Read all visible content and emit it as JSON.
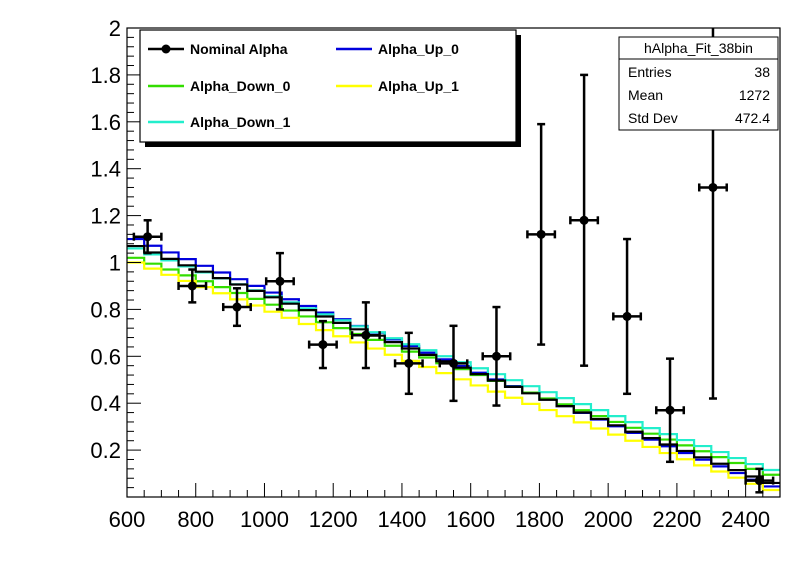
{
  "chart_data": {
    "type": "line",
    "title": "",
    "xlabel": "",
    "ylabel": "",
    "xlim": [
      600,
      2500
    ],
    "ylim": [
      0,
      2
    ],
    "x_ticks": [
      600,
      800,
      1000,
      1200,
      1400,
      1600,
      1800,
      2000,
      2200,
      2400
    ],
    "y_ticks": [
      0.2,
      0.4,
      0.6,
      0.8,
      1,
      1.2,
      1.4,
      1.6,
      1.8,
      2
    ],
    "x_tick_labels": [
      "600",
      "800",
      "1000",
      "1200",
      "1400",
      "1600",
      "1800",
      "2000",
      "2200",
      "2400"
    ],
    "y_tick_labels": [
      "0.2",
      "0.4",
      "0.6",
      "0.8",
      "1",
      "1.2",
      "1.4",
      "1.6",
      "1.8",
      "2"
    ],
    "grid": false,
    "legend_position": "top-left",
    "legend": [
      {
        "label": "Nominal Alpha",
        "color": "#000000",
        "marker": "dot"
      },
      {
        "label": "Alpha_Up_0",
        "color": "#0000dd",
        "marker": "line"
      },
      {
        "label": "Alpha_Down_0",
        "color": "#33dd00",
        "marker": "line"
      },
      {
        "label": "Alpha_Up_1",
        "color": "#ffff00",
        "marker": "line"
      },
      {
        "label": "Alpha_Down_1",
        "color": "#22eecc",
        "marker": "line"
      }
    ],
    "stats": {
      "name": "hAlpha_Fit_38bin",
      "rows": [
        {
          "label": "Entries",
          "value": "38"
        },
        {
          "label": "Mean",
          "value": "1272"
        },
        {
          "label": "Std Dev",
          "value": "472.4"
        }
      ]
    },
    "nominal_points": [
      {
        "x": 660,
        "y": 1.11,
        "xerr": 40,
        "yerr": 0.07
      },
      {
        "x": 790,
        "y": 0.9,
        "xerr": 40,
        "yerr": 0.07
      },
      {
        "x": 920,
        "y": 0.81,
        "xerr": 40,
        "yerr": 0.08
      },
      {
        "x": 1045,
        "y": 0.92,
        "xerr": 40,
        "yerr": 0.12
      },
      {
        "x": 1170,
        "y": 0.65,
        "xerr": 40,
        "yerr": 0.1
      },
      {
        "x": 1295,
        "y": 0.69,
        "xerr": 40,
        "yerr": 0.14
      },
      {
        "x": 1420,
        "y": 0.57,
        "xerr": 40,
        "yerr": 0.13
      },
      {
        "x": 1550,
        "y": 0.57,
        "xerr": 40,
        "yerr": 0.16
      },
      {
        "x": 1675,
        "y": 0.6,
        "xerr": 40,
        "yerr": 0.21
      },
      {
        "x": 1805,
        "y": 1.12,
        "xerr": 40,
        "yerr": 0.47
      },
      {
        "x": 1930,
        "y": 1.18,
        "xerr": 40,
        "yerr": 0.62
      },
      {
        "x": 2055,
        "y": 0.77,
        "xerr": 40,
        "yerr": 0.33
      },
      {
        "x": 2180,
        "y": 0.37,
        "xerr": 40,
        "yerr": 0.22
      },
      {
        "x": 2305,
        "y": 1.32,
        "xerr": 40,
        "yerr": 0.9
      },
      {
        "x": 2440,
        "y": 0.07,
        "xerr": 40,
        "yerr": 0.05
      }
    ],
    "series": [
      {
        "name": "Alpha_Up_0",
        "color": "#0000dd",
        "y_start": 1.1,
        "y_end": 0.045
      },
      {
        "name": "Alpha_Down_0",
        "color": "#33dd00",
        "y_start": 1.02,
        "y_end": 0.095
      },
      {
        "name": "Alpha_Up_1",
        "color": "#ffff00",
        "y_start": 1.0,
        "y_end": 0.03
      },
      {
        "name": "Alpha_Down_1",
        "color": "#22eecc",
        "y_start": 1.06,
        "y_end": 0.115
      },
      {
        "name": "Nominal Alpha",
        "color": "#000000",
        "y_start": 1.07,
        "y_end": 0.06
      }
    ],
    "step_bins": 38
  }
}
